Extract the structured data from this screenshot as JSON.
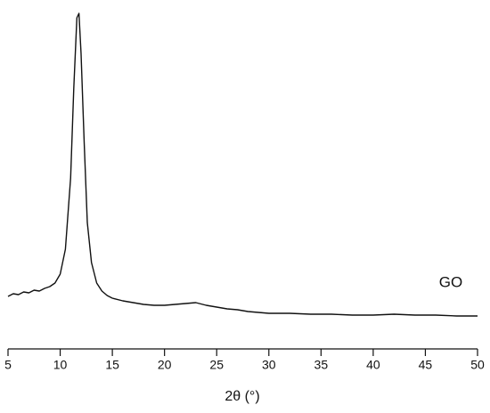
{
  "chart_data": {
    "type": "line",
    "xlabel": "2θ (°)",
    "annotation": "GO",
    "xlim": [
      5,
      50
    ],
    "xticks": [
      5,
      10,
      15,
      20,
      25,
      30,
      35,
      40,
      45,
      50
    ],
    "ylim": [
      0,
      390
    ],
    "series": [
      {
        "name": "GO",
        "color": "#111111",
        "x": [
          5,
          5.5,
          6,
          6.5,
          7,
          7.5,
          8,
          8.5,
          9,
          9.5,
          10,
          10.5,
          11,
          11.3,
          11.6,
          11.8,
          12,
          12.3,
          12.6,
          13,
          13.5,
          14,
          14.5,
          15,
          16,
          17,
          18,
          19,
          20,
          21,
          22,
          23,
          24,
          25,
          26,
          27,
          28,
          29,
          30,
          32,
          34,
          36,
          38,
          40,
          42,
          44,
          46,
          48,
          50
        ],
        "values": [
          59,
          62,
          61,
          64,
          63,
          66,
          65,
          68,
          70,
          74,
          84,
          112,
          192,
          292,
          372,
          377,
          332,
          232,
          142,
          97,
          74,
          65,
          60,
          57,
          54,
          52,
          50,
          49,
          49,
          50,
          51,
          52,
          49,
          47,
          45,
          44,
          42,
          41,
          40,
          40,
          39,
          39,
          38,
          38,
          39,
          38,
          38,
          37,
          37
        ]
      }
    ]
  }
}
